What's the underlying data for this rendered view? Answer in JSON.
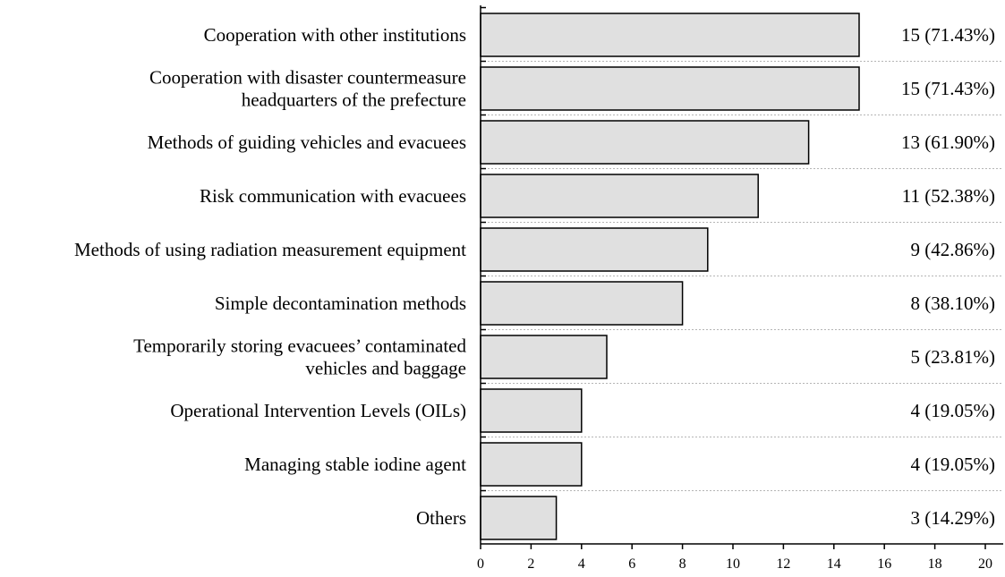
{
  "chart_data": {
    "type": "bar",
    "orientation": "horizontal",
    "categories": [
      [
        "Cooperation with other institutions"
      ],
      [
        "Cooperation with disaster countermeasure",
        "headquarters of the prefecture"
      ],
      [
        "Methods of guiding vehicles and evacuees"
      ],
      [
        "Risk communication with evacuees"
      ],
      [
        "Methods of using radiation measurement equipment"
      ],
      [
        "Simple decontamination methods"
      ],
      [
        "Temporarily storing evacuees’ contaminated",
        "vehicles and baggage"
      ],
      [
        "Operational Intervention Levels (OILs)"
      ],
      [
        "Managing stable iodine agent"
      ],
      [
        "Others"
      ]
    ],
    "values": [
      15,
      15,
      13,
      11,
      9,
      8,
      5,
      4,
      4,
      3
    ],
    "value_labels": [
      "15 (71.43%)",
      "15 (71.43%)",
      "13 (61.90%)",
      "11 (52.38%)",
      "9 (42.86%)",
      "8 (38.10%)",
      "5 (23.81%)",
      "4 (19.05%)",
      "4 (19.05%)",
      "3 (14.29%)"
    ],
    "xlim": [
      0,
      20
    ],
    "x_ticks": [
      0,
      2,
      4,
      6,
      8,
      10,
      12,
      14,
      16,
      18,
      20
    ],
    "title": "",
    "xlabel": "",
    "ylabel": "",
    "bar_color": "#e0e0e0",
    "grid": "dotted horizontal separators between rows",
    "legend": "none"
  }
}
